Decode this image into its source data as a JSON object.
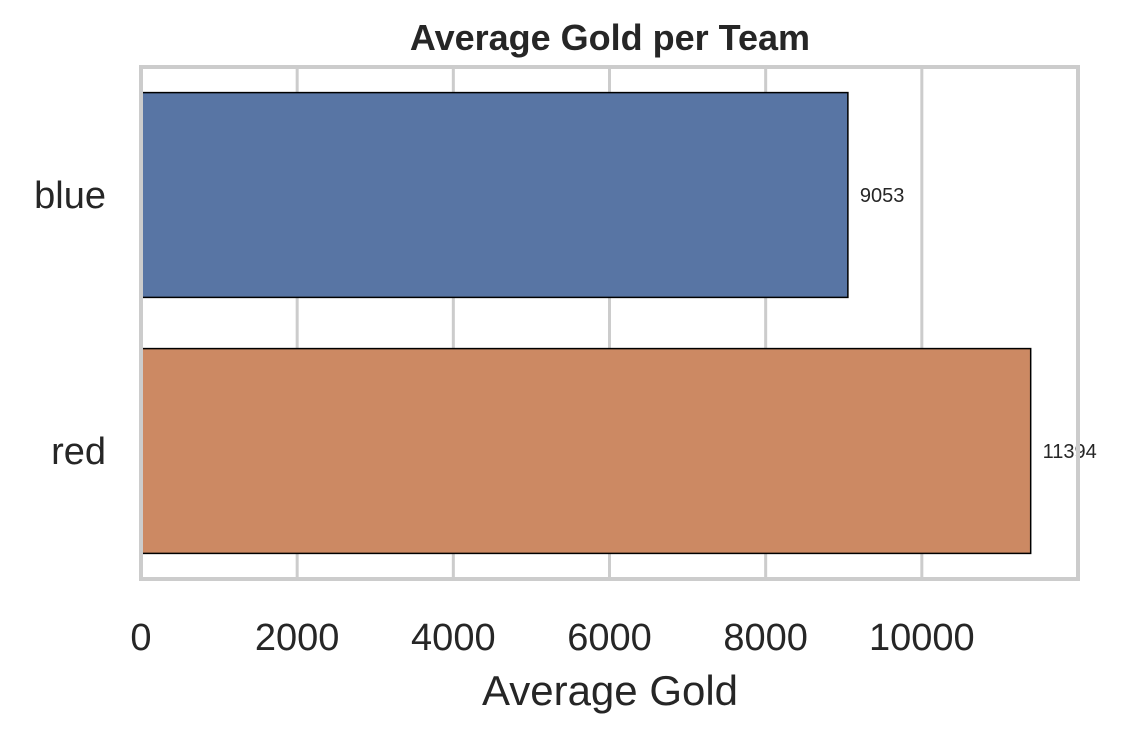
{
  "chart_data": {
    "type": "bar",
    "orientation": "horizontal",
    "title": "Average Gold per Team",
    "xlabel": "Average Gold",
    "ylabel": "",
    "categories": [
      "blue",
      "red"
    ],
    "values": [
      9053,
      11394
    ],
    "data_labels": [
      "9053",
      "11394"
    ],
    "colors": [
      "#5875a4",
      "#cc8963"
    ],
    "xlim": [
      0,
      12000
    ],
    "xticks": [
      0,
      2000,
      4000,
      6000,
      8000,
      10000
    ],
    "xtick_labels": [
      "0",
      "2000",
      "4000",
      "6000",
      "8000",
      "10000"
    ],
    "grid": true,
    "grid_color": "#cccccc",
    "bar_edge_color": "#000000",
    "legend": "none"
  }
}
